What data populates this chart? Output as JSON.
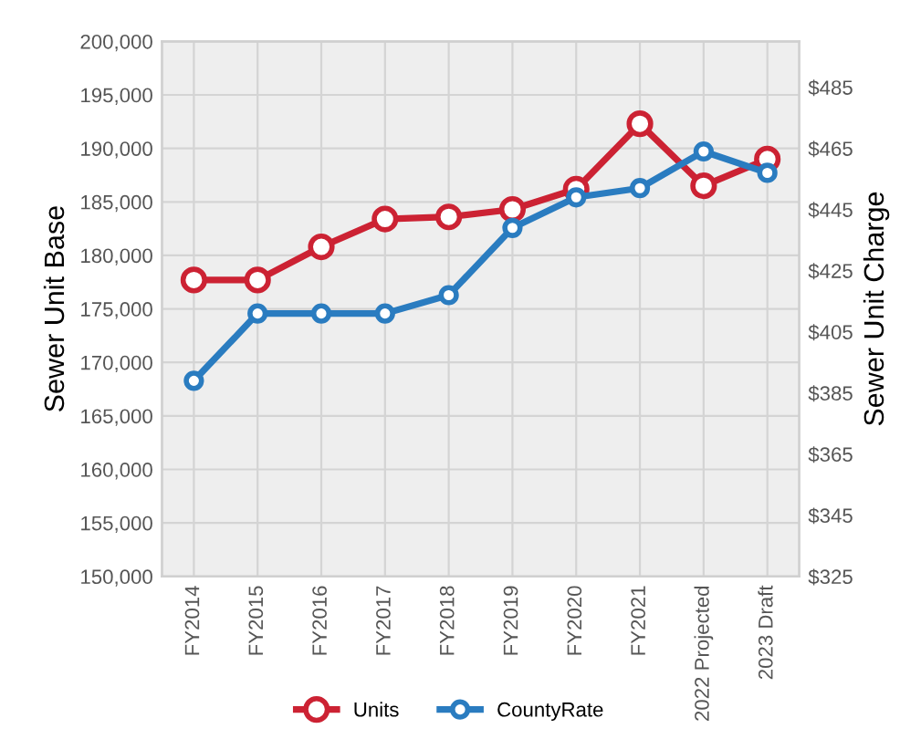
{
  "chart_data": {
    "type": "line",
    "ylabel": "Sewer Unit Base",
    "y2label": "Sewer Unit Charge",
    "categories": [
      "FY2014",
      "FY2015",
      "FY2016",
      "FY2017",
      "FY2018",
      "FY2019",
      "FY2020",
      "FY2021",
      "2022 Projected",
      "2023 Draft"
    ],
    "series": [
      {
        "name": "Units",
        "color": "#cc2233",
        "values": [
          177700,
          177700,
          180800,
          183400,
          183600,
          184300,
          186200,
          192300,
          186500,
          189000
        ]
      },
      {
        "name": "CountyRate",
        "color": "#2a7cc0",
        "axis": "y2",
        "values": [
          389,
          411,
          411,
          411,
          417,
          439,
          449,
          452,
          464,
          457
        ]
      }
    ],
    "ylim": [
      150000,
      200000
    ],
    "yticks": [
      {
        "value": 150000,
        "label": "150,000"
      },
      {
        "value": 155000,
        "label": "155,000"
      },
      {
        "value": 160000,
        "label": "160,000"
      },
      {
        "value": 165000,
        "label": "165,000"
      },
      {
        "value": 170000,
        "label": "170,000"
      },
      {
        "value": 175000,
        "label": "175,000"
      },
      {
        "value": 180000,
        "label": "180,000"
      },
      {
        "value": 185000,
        "label": "185,000"
      },
      {
        "value": 190000,
        "label": "190,000"
      },
      {
        "value": 195000,
        "label": "195,000"
      },
      {
        "value": 200000,
        "label": "200,000"
      }
    ],
    "y2lim": [
      325,
      500
    ],
    "y2ticks": [
      {
        "value": 325,
        "label": "$325"
      },
      {
        "value": 345,
        "label": "$345"
      },
      {
        "value": 365,
        "label": "$365"
      },
      {
        "value": 385,
        "label": "$385"
      },
      {
        "value": 405,
        "label": "$405"
      },
      {
        "value": 425,
        "label": "$425"
      },
      {
        "value": 445,
        "label": "$445"
      },
      {
        "value": 465,
        "label": "$465"
      },
      {
        "value": 485,
        "label": "$485"
      }
    ],
    "grid": true,
    "legend": "bottom",
    "marker": "circle",
    "line_style": "solid"
  }
}
